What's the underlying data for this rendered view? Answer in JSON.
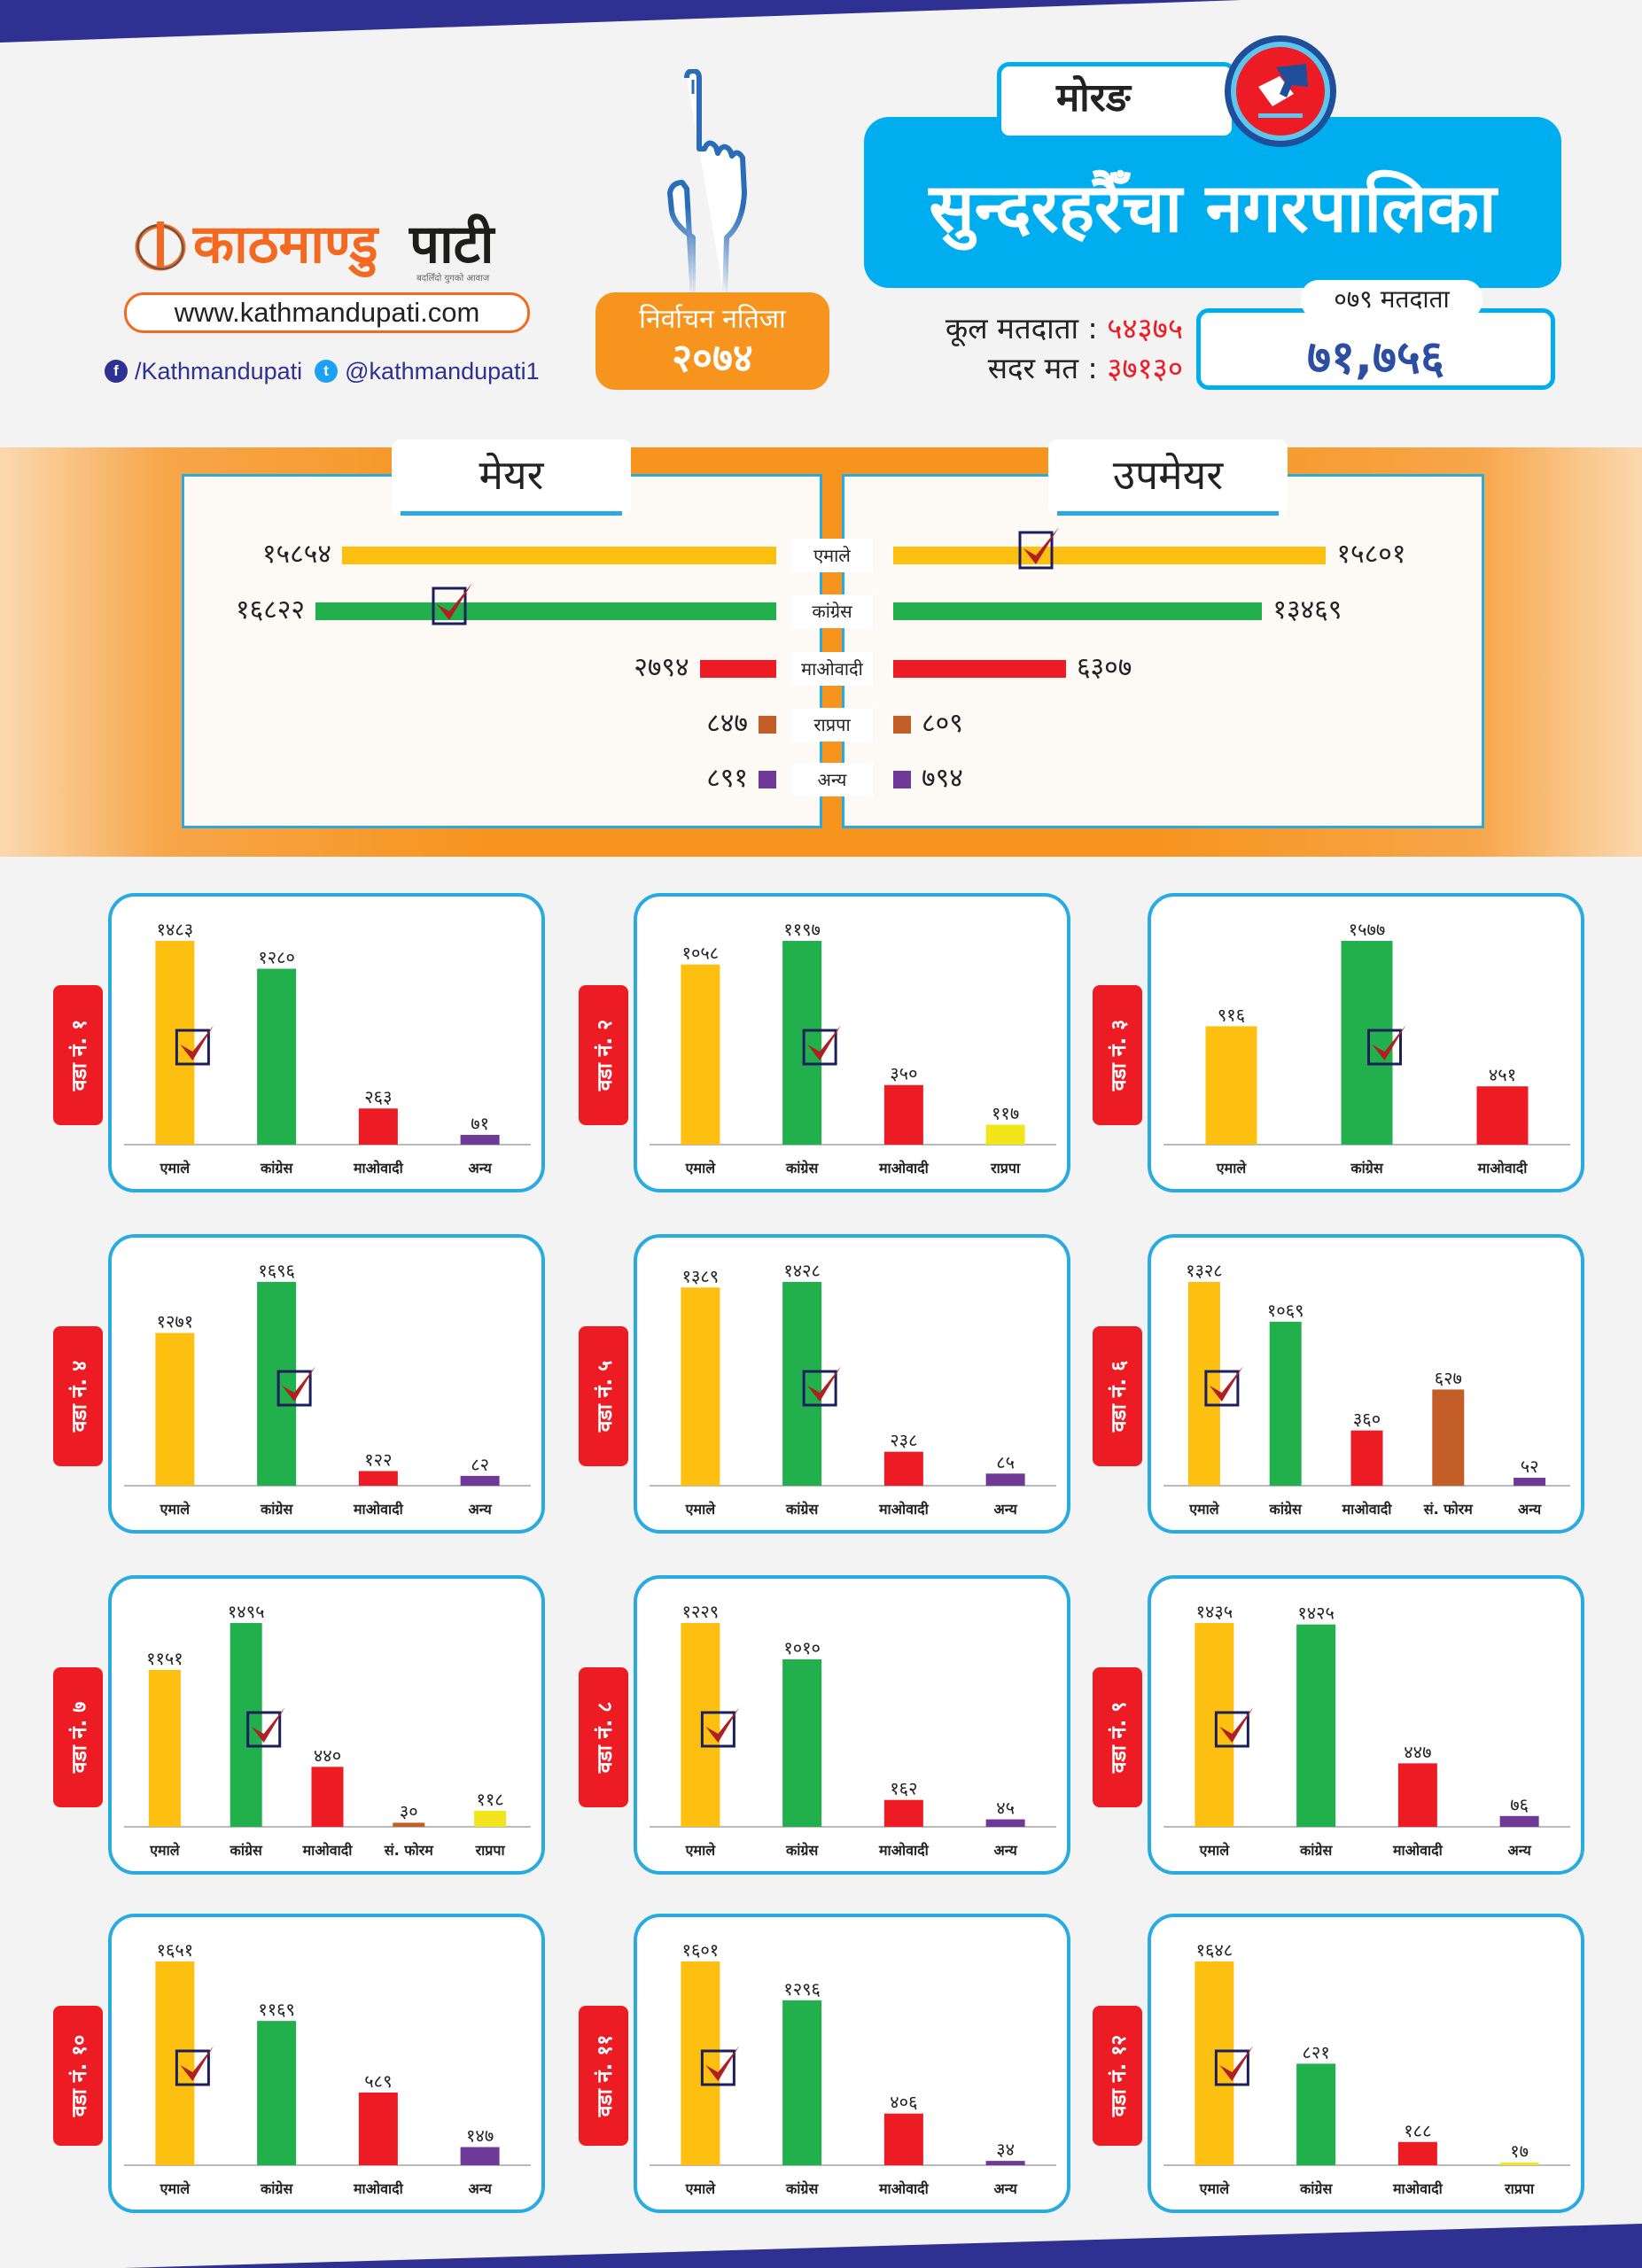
{
  "header": {
    "brand_part1": "काठमाण्डु",
    "brand_part2": "पाटी",
    "brand_tagline": "बदलिँदो युगको आवाज",
    "website": "www.kathmandupati.com",
    "facebook_handle": "/Kathmandupati",
    "twitter_handle": "@kathmandupati1",
    "badge_line1": "निर्वाचन नतिजा",
    "badge_line2": "२०७४",
    "district": "मोरङ",
    "municipality": "सुन्दरहरैँचा नगरपालिका",
    "total_voters_label": "कूल मतदाता :",
    "total_voters_value": "५४३७५",
    "valid_votes_label": "सदर मत :",
    "valid_votes_value": "३७१३०",
    "voters_079_label": "०७९ मतदाता",
    "voters_079_value": "७१,७५६"
  },
  "colors": {
    "navy": "#2e3192",
    "sky": "#00aeef",
    "orange": "#f7941d",
    "ward_tab": "#ed1c24",
    "check": "#b01f24",
    "parties": {
      "एमाले": "#fdc010",
      "कांग्रेस": "#21b04b",
      "माओवादी": "#ed1c24",
      "राप्रपा_main": "#c45e29",
      "राप्रपा": "#f2e51c",
      "सं. फोरम": "#c45e29",
      "अन्य": "#6f3a97"
    }
  },
  "chart_data": [
    {
      "type": "bar",
      "orientation": "horizontal-butterfly",
      "title": "मेयर / उपमेयर",
      "categories": [
        "एमाले",
        "कांग्रेस",
        "माओवादी",
        "राप्रपा",
        "अन्य"
      ],
      "series": [
        {
          "name": "मेयर",
          "values": [
            15854,
            16822,
            2794,
            847,
            891
          ],
          "labels": [
            "१५८५४",
            "१६८२२",
            "२७९४",
            "८४७",
            "८९१"
          ],
          "winner": "कांग्रेस"
        },
        {
          "name": "उपमेयर",
          "values": [
            15801,
            13469,
            6307,
            809,
            794
          ],
          "labels": [
            "१५८०१",
            "१३४६९",
            "६३०७",
            "८०९",
            "७९४"
          ],
          "winner": "एमाले"
        }
      ],
      "xlim": [
        0,
        16822
      ]
    },
    {
      "type": "bar",
      "title": "वडा नं. १",
      "categories": [
        "एमाले",
        "कांग्रेस",
        "माओवादी",
        "अन्य"
      ],
      "values": [
        1483,
        1280,
        263,
        71
      ],
      "labels": [
        "१४८३",
        "१२८०",
        "२६३",
        "७१"
      ],
      "winner": 0
    },
    {
      "type": "bar",
      "title": "वडा नं. २",
      "categories": [
        "एमाले",
        "कांग्रेस",
        "माओवादी",
        "राप्रपा"
      ],
      "values": [
        1058,
        1197,
        350,
        117
      ],
      "labels": [
        "१०५८",
        "११९७",
        "३५०",
        "११७"
      ],
      "winner": 1
    },
    {
      "type": "bar",
      "title": "वडा नं. ३",
      "categories": [
        "एमाले",
        "कांग्रेस",
        "माओवादी"
      ],
      "values": [
        916,
        1577,
        451
      ],
      "labels": [
        "९१६",
        "१५७७",
        "४५१"
      ],
      "winner": 1
    },
    {
      "type": "bar",
      "title": "वडा नं. ४",
      "categories": [
        "एमाले",
        "कांग्रेस",
        "माओवादी",
        "अन्य"
      ],
      "values": [
        1271,
        1696,
        122,
        82
      ],
      "labels": [
        "१२७१",
        "१६९६",
        "१२२",
        "८२"
      ],
      "winner": 1
    },
    {
      "type": "bar",
      "title": "वडा नं. ५",
      "categories": [
        "एमाले",
        "कांग्रेस",
        "माओवादी",
        "अन्य"
      ],
      "values": [
        1389,
        1428,
        238,
        85
      ],
      "labels": [
        "१३८९",
        "१४२८",
        "२३८",
        "८५"
      ],
      "winner": 1
    },
    {
      "type": "bar",
      "title": "वडा नं. ६",
      "categories": [
        "एमाले",
        "कांग्रेस",
        "माओवादी",
        "सं. फोरम",
        "अन्य"
      ],
      "values": [
        1328,
        1069,
        360,
        627,
        52
      ],
      "labels": [
        "१३२८",
        "१०६९",
        "३६०",
        "६२७",
        "५२"
      ],
      "winner": 0
    },
    {
      "type": "bar",
      "title": "वडा नं. ७",
      "categories": [
        "एमाले",
        "कांग्रेस",
        "माओवादी",
        "सं. फोरम",
        "राप्रपा"
      ],
      "values": [
        1151,
        1495,
        440,
        30,
        118
      ],
      "labels": [
        "११५१",
        "१४९५",
        "४४०",
        "३०",
        "११८"
      ],
      "winner": 1
    },
    {
      "type": "bar",
      "title": "वडा नं. ८",
      "categories": [
        "एमाले",
        "कांग्रेस",
        "माओवादी",
        "अन्य"
      ],
      "values": [
        1229,
        1010,
        162,
        45
      ],
      "labels": [
        "१२२९",
        "१०१०",
        "१६२",
        "४५"
      ],
      "winner": 0
    },
    {
      "type": "bar",
      "title": "वडा नं. ९",
      "categories": [
        "एमाले",
        "कांग्रेस",
        "माओवादी",
        "अन्य"
      ],
      "values": [
        1435,
        1425,
        447,
        76
      ],
      "labels": [
        "१४३५",
        "१४२५",
        "४४७",
        "७६"
      ],
      "winner": 0
    },
    {
      "type": "bar",
      "title": "वडा नं. १०",
      "categories": [
        "एमाले",
        "कांग्रेस",
        "माओवादी",
        "अन्य"
      ],
      "values": [
        1651,
        1169,
        589,
        147
      ],
      "labels": [
        "१६५१",
        "११६९",
        "५८९",
        "१४७"
      ],
      "winner": 0
    },
    {
      "type": "bar",
      "title": "वडा नं. ११",
      "categories": [
        "एमाले",
        "कांग्रेस",
        "माओवादी",
        "अन्य"
      ],
      "values": [
        1601,
        1296,
        406,
        34
      ],
      "labels": [
        "१६०१",
        "१२९६",
        "४०६",
        "३४"
      ],
      "winner": 0
    },
    {
      "type": "bar",
      "title": "वडा नं. १२",
      "categories": [
        "एमाले",
        "कांग्रेस",
        "माओवादी",
        "राप्रपा"
      ],
      "values": [
        1648,
        821,
        188,
        17
      ],
      "labels": [
        "१६४८",
        "८२१",
        "१८८",
        "१७"
      ],
      "winner": 0
    }
  ]
}
